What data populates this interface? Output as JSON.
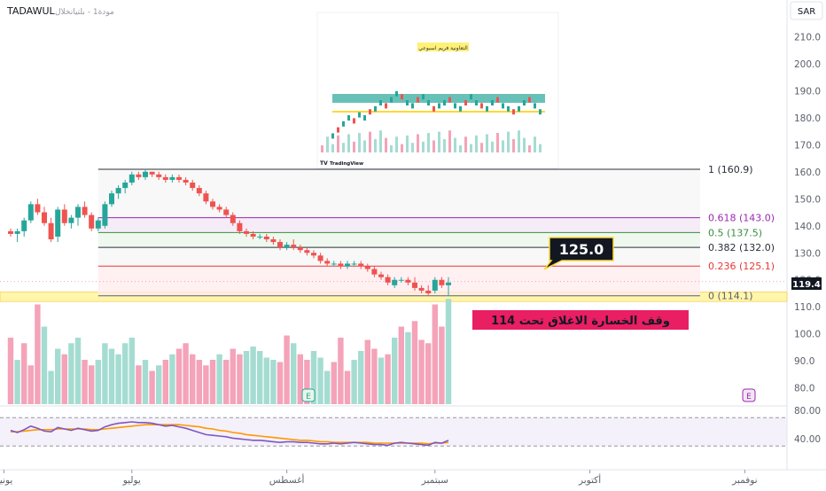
{
  "header": {
    "symbol": "TADAWUL",
    "subtitle": "مودة1 - بلتيانخلال"
  },
  "currency": "SAR",
  "last_price": "119.4",
  "price_axis": {
    "min": 74,
    "max": 217,
    "ticks": [
      210,
      200,
      190,
      180,
      170,
      160,
      150,
      140,
      130,
      120,
      110,
      100,
      90,
      80
    ]
  },
  "rsi": {
    "min": 24,
    "max": 84,
    "ticks": [
      "80.00",
      "40.00"
    ],
    "upper_line": 70,
    "lower_line": 30
  },
  "x_axis": {
    "labels": [
      {
        "text": "يونيو",
        "index": -1
      },
      {
        "text": "يوليو",
        "index": 18
      },
      {
        "text": "أغسطس",
        "index": 41
      },
      {
        "text": "سبتمبر",
        "index": 63
      },
      {
        "text": "أكتوبر",
        "index": 86
      },
      {
        "text": "نوفمبر",
        "index": 109
      }
    ]
  },
  "fib": {
    "start_index": 13,
    "end_index": 100,
    "levels": [
      {
        "ratio": "1",
        "price": 160.9,
        "label": "1 (160.9)",
        "color": "#2a2e39"
      },
      {
        "ratio": "0.618",
        "price": 143.0,
        "label": "0.618 (143.0)",
        "color": "#9c27b0"
      },
      {
        "ratio": "0.5",
        "price": 137.5,
        "label": "0.5 (137.5)",
        "color": "#388e3c"
      },
      {
        "ratio": "0.382",
        "price": 132.0,
        "label": "0.382 (132.0)",
        "color": "#2a2e39"
      },
      {
        "ratio": "0.236",
        "price": 125.1,
        "label": "0.236 (125.1)",
        "color": "#e53935"
      },
      {
        "ratio": "0",
        "price": 114.1,
        "label": "0 (114.1)",
        "color": "#5d606b"
      }
    ]
  },
  "support_zone": {
    "from": 112.0,
    "to": 115.5,
    "color": "#fff59d"
  },
  "annotations": {
    "price_callout": "125.0",
    "stop_loss": "وقف الخسارة الاغلاق تحت 114"
  },
  "inset": {
    "title": "التعاونية فريم اسبوعي",
    "brand": "TradingView"
  },
  "colors": {
    "up": "#26a69a",
    "down": "#ef5350",
    "vol_up": "#a5dcd1",
    "vol_down": "#f4a3b9",
    "rsi": "#7e57c2",
    "rsi_ma": "#ff9800"
  },
  "chart_data": {
    "type": "candlestick",
    "title": "TADAWUL",
    "x_labels": [
      "يونيو",
      "يوليو",
      "أغسطس",
      "سبتمبر",
      "أكتوبر",
      "نوفمبر"
    ],
    "ylim": [
      74,
      217
    ],
    "ohlc": [
      [
        138,
        139,
        136,
        137
      ],
      [
        137,
        139,
        134,
        138
      ],
      [
        138,
        143,
        136,
        142
      ],
      [
        142,
        149,
        141,
        148
      ],
      [
        148,
        150,
        144,
        145
      ],
      [
        145,
        147,
        140,
        141
      ],
      [
        141,
        143,
        134,
        135
      ],
      [
        136,
        147,
        134,
        146
      ],
      [
        146,
        148,
        140,
        141
      ],
      [
        141,
        144,
        139,
        143
      ],
      [
        143,
        148,
        140,
        147
      ],
      [
        147,
        149,
        143,
        144
      ],
      [
        144,
        145,
        138,
        139
      ],
      [
        139,
        143,
        138,
        142
      ],
      [
        140,
        149,
        139,
        148
      ],
      [
        148,
        153,
        147,
        152
      ],
      [
        152,
        155,
        150,
        154
      ],
      [
        154,
        157,
        152,
        156
      ],
      [
        156,
        160,
        155,
        159
      ],
      [
        159,
        160,
        157,
        158
      ],
      [
        158,
        161,
        157,
        160
      ],
      [
        160,
        160,
        158,
        159
      ],
      [
        159,
        160,
        157,
        158
      ],
      [
        158,
        159,
        156,
        157
      ],
      [
        157,
        159,
        156,
        158
      ],
      [
        158,
        159,
        156,
        157
      ],
      [
        157,
        158,
        155,
        156
      ],
      [
        156,
        157,
        153,
        154
      ],
      [
        154,
        155,
        151,
        152
      ],
      [
        152,
        153,
        148,
        149
      ],
      [
        149,
        150,
        146,
        147
      ],
      [
        147,
        148,
        145,
        146
      ],
      [
        146,
        147,
        143,
        144
      ],
      [
        144,
        145,
        140,
        141
      ],
      [
        141,
        142,
        137,
        138
      ],
      [
        138,
        139,
        136,
        137
      ],
      [
        137,
        138,
        135,
        136
      ],
      [
        136,
        137,
        135,
        136
      ],
      [
        136,
        137,
        134,
        135
      ],
      [
        135,
        136,
        133,
        134
      ],
      [
        134,
        135,
        131,
        132
      ],
      [
        132,
        134,
        131,
        133
      ],
      [
        133,
        135,
        131,
        132
      ],
      [
        132,
        133,
        130,
        131
      ],
      [
        131,
        132,
        129,
        130
      ],
      [
        130,
        131,
        128,
        129
      ],
      [
        129,
        130,
        126,
        127
      ],
      [
        127,
        128,
        125,
        126
      ],
      [
        126,
        127,
        125,
        126
      ],
      [
        126,
        127,
        124,
        125
      ],
      [
        125,
        127,
        124,
        126
      ],
      [
        126,
        127,
        125,
        126
      ],
      [
        126,
        127,
        124,
        125
      ],
      [
        125,
        126,
        123,
        124
      ],
      [
        124,
        125,
        121,
        122
      ],
      [
        122,
        123,
        120,
        121
      ],
      [
        121,
        122,
        118,
        119
      ],
      [
        118,
        121,
        117,
        120
      ],
      [
        120,
        121,
        119,
        120
      ],
      [
        120,
        121,
        118,
        119
      ],
      [
        119,
        121,
        116,
        117
      ],
      [
        117,
        118,
        115,
        116
      ],
      [
        116,
        118,
        114,
        115
      ],
      [
        116,
        121,
        115,
        120
      ],
      [
        120,
        121,
        117,
        118
      ],
      [
        118,
        121,
        114,
        119
      ]
    ],
    "volume": [
      [
        60,
        0
      ],
      [
        40,
        1
      ],
      [
        55,
        0
      ],
      [
        35,
        0
      ],
      [
        90,
        0
      ],
      [
        70,
        1
      ],
      [
        30,
        1
      ],
      [
        50,
        1
      ],
      [
        45,
        0
      ],
      [
        55,
        1
      ],
      [
        60,
        1
      ],
      [
        40,
        0
      ],
      [
        35,
        0
      ],
      [
        40,
        1
      ],
      [
        55,
        1
      ],
      [
        50,
        1
      ],
      [
        45,
        1
      ],
      [
        55,
        1
      ],
      [
        60,
        1
      ],
      [
        35,
        0
      ],
      [
        40,
        1
      ],
      [
        30,
        0
      ],
      [
        35,
        1
      ],
      [
        40,
        0
      ],
      [
        45,
        1
      ],
      [
        50,
        0
      ],
      [
        55,
        0
      ],
      [
        45,
        0
      ],
      [
        40,
        0
      ],
      [
        35,
        0
      ],
      [
        40,
        0
      ],
      [
        45,
        1
      ],
      [
        40,
        0
      ],
      [
        50,
        0
      ],
      [
        45,
        0
      ],
      [
        48,
        1
      ],
      [
        52,
        1
      ],
      [
        48,
        1
      ],
      [
        42,
        1
      ],
      [
        40,
        1
      ],
      [
        38,
        0
      ],
      [
        62,
        0
      ],
      [
        55,
        1
      ],
      [
        45,
        0
      ],
      [
        40,
        0
      ],
      [
        48,
        1
      ],
      [
        42,
        1
      ],
      [
        30,
        1
      ],
      [
        38,
        0
      ],
      [
        60,
        0
      ],
      [
        30,
        0
      ],
      [
        40,
        1
      ],
      [
        48,
        1
      ],
      [
        58,
        0
      ],
      [
        50,
        0
      ],
      [
        42,
        1
      ],
      [
        45,
        0
      ],
      [
        60,
        1
      ],
      [
        70,
        0
      ],
      [
        65,
        1
      ],
      [
        75,
        0
      ],
      [
        58,
        0
      ],
      [
        55,
        0
      ],
      [
        90,
        0
      ],
      [
        70,
        0
      ],
      [
        95,
        1
      ]
    ],
    "rsi": [
      [
        52,
        50
      ],
      [
        49,
        50
      ],
      [
        53,
        51
      ],
      [
        58,
        52
      ],
      [
        55,
        53
      ],
      [
        51,
        53
      ],
      [
        50,
        53
      ],
      [
        56,
        54
      ],
      [
        54,
        54
      ],
      [
        52,
        54
      ],
      [
        55,
        54
      ],
      [
        53,
        54
      ],
      [
        51,
        53
      ],
      [
        52,
        53
      ],
      [
        57,
        54
      ],
      [
        60,
        55
      ],
      [
        62,
        56
      ],
      [
        63,
        57
      ],
      [
        64,
        58
      ],
      [
        63,
        59
      ],
      [
        63,
        60
      ],
      [
        62,
        60
      ],
      [
        60,
        60
      ],
      [
        58,
        60
      ],
      [
        59,
        60
      ],
      [
        57,
        60
      ],
      [
        55,
        59
      ],
      [
        52,
        58
      ],
      [
        49,
        57
      ],
      [
        46,
        55
      ],
      [
        45,
        54
      ],
      [
        44,
        52
      ],
      [
        43,
        51
      ],
      [
        41,
        49
      ],
      [
        40,
        48
      ],
      [
        39,
        46
      ],
      [
        38,
        45
      ],
      [
        38,
        44
      ],
      [
        37,
        43
      ],
      [
        36,
        42
      ],
      [
        35,
        41
      ],
      [
        36,
        40
      ],
      [
        36,
        39
      ],
      [
        35,
        38
      ],
      [
        35,
        38
      ],
      [
        34,
        37
      ],
      [
        33,
        36
      ],
      [
        33,
        36
      ],
      [
        34,
        35
      ],
      [
        33,
        35
      ],
      [
        34,
        35
      ],
      [
        35,
        35
      ],
      [
        34,
        35
      ],
      [
        33,
        35
      ],
      [
        32,
        34
      ],
      [
        32,
        34
      ],
      [
        31,
        34
      ],
      [
        34,
        34
      ],
      [
        35,
        34
      ],
      [
        34,
        34
      ],
      [
        33,
        34
      ],
      [
        32,
        34
      ],
      [
        31,
        33
      ],
      [
        35,
        34
      ],
      [
        34,
        34
      ],
      [
        38,
        35
      ]
    ]
  }
}
